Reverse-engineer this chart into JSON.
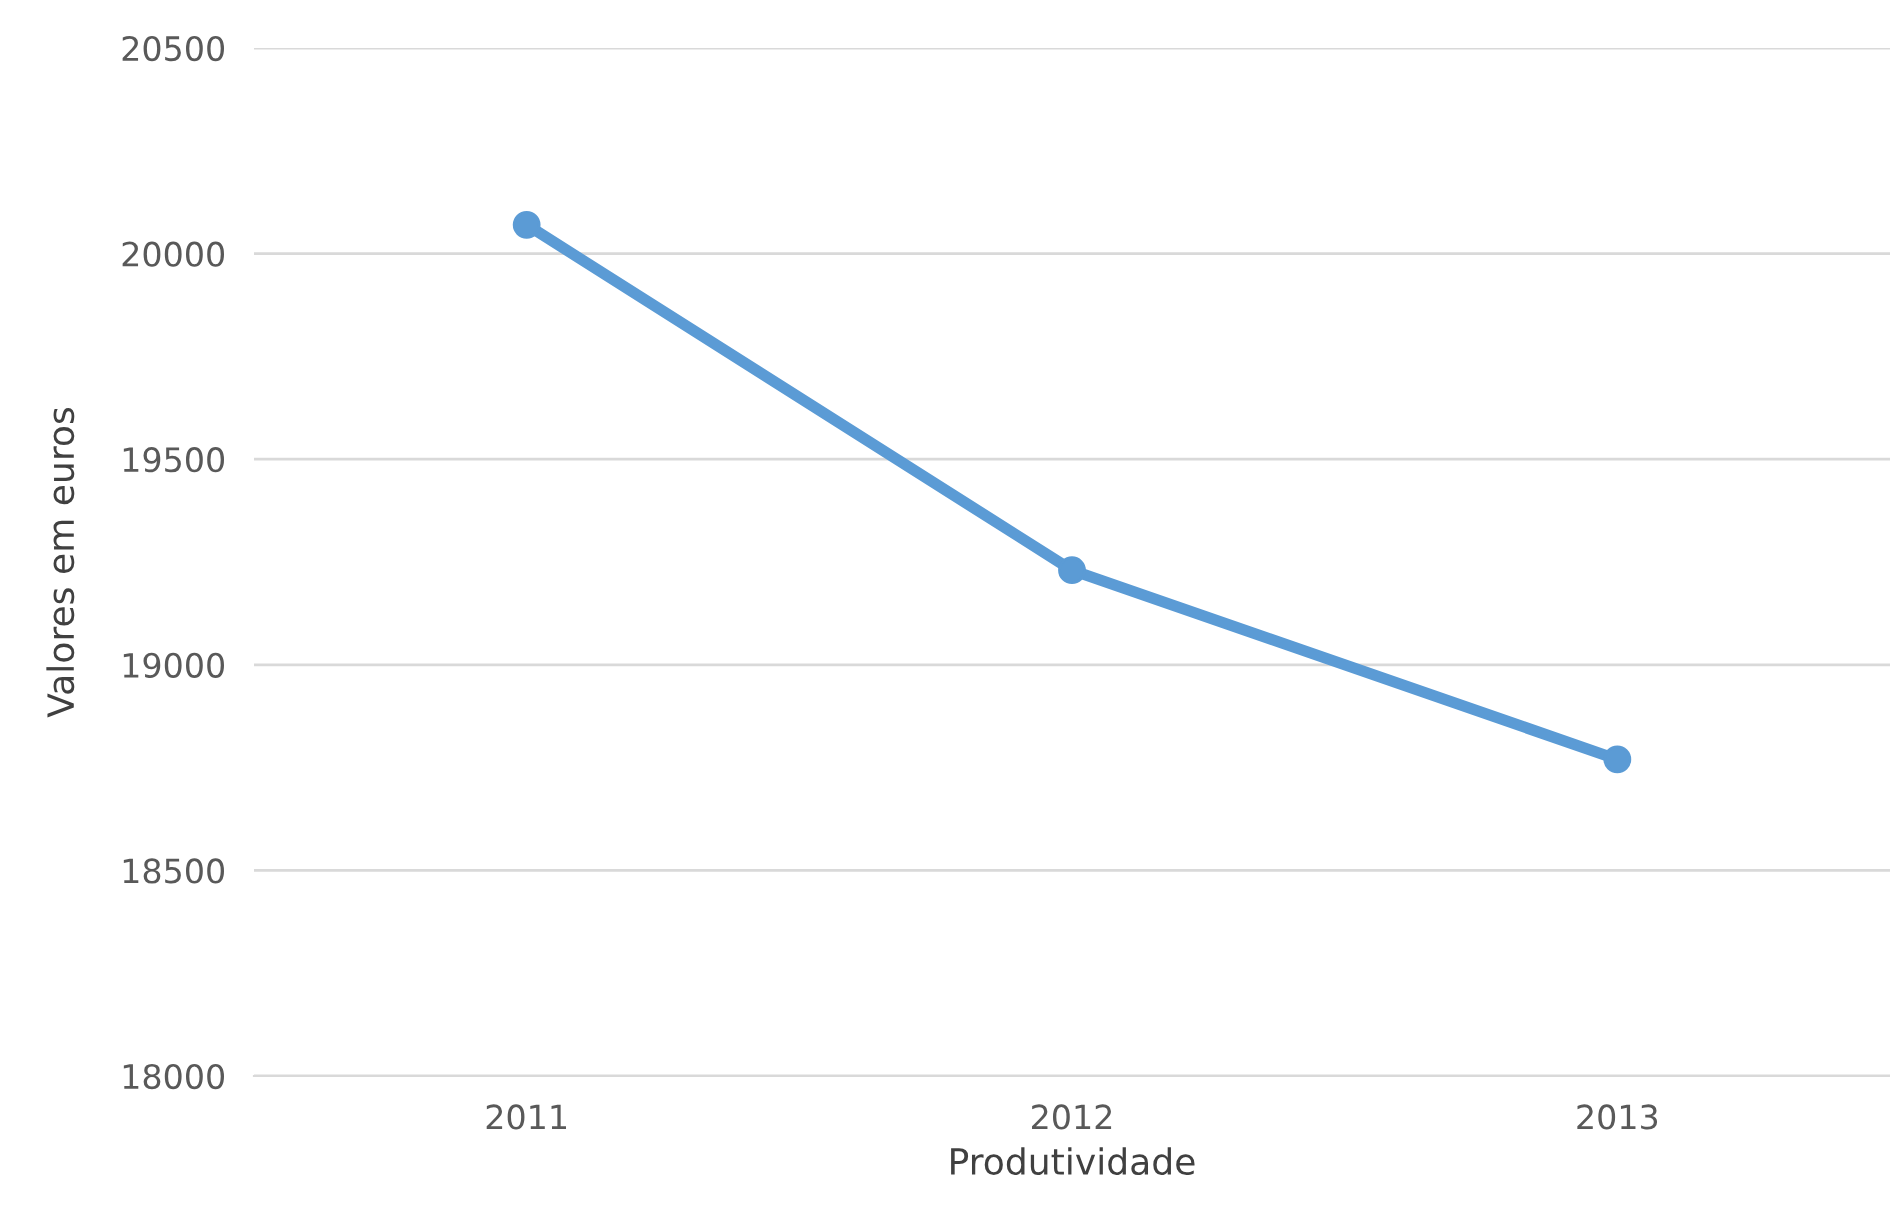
{
  "chart_data": {
    "type": "line",
    "xlabel": "Produtividade",
    "ylabel": "Valores em euros",
    "categories": [
      "2011",
      "2012",
      "2013"
    ],
    "series": [
      {
        "color": "#5b9bd5",
        "values": [
          20070,
          19230,
          18770
        ]
      }
    ],
    "ylim": [
      18000,
      20500
    ],
    "yticks": [
      18000,
      18500,
      19000,
      19500,
      20000,
      20500
    ],
    "grid": "y",
    "legend": false,
    "marker": "circle",
    "line_style": "solid"
  }
}
